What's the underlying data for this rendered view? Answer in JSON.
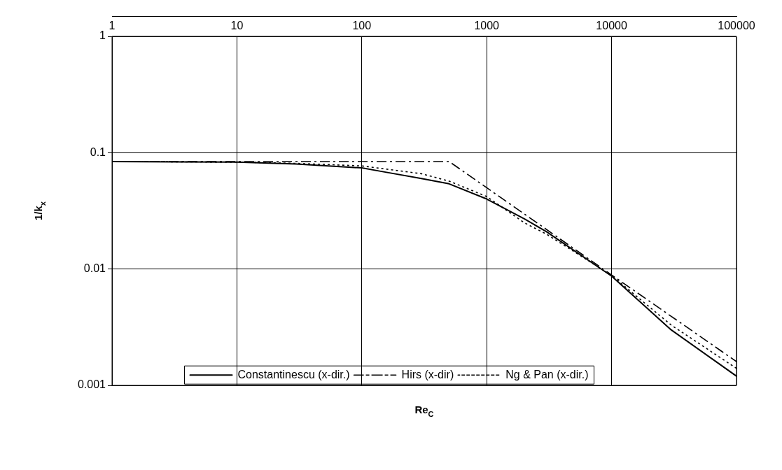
{
  "chart_data": {
    "type": "line",
    "xlabel": "Re$_{C}$",
    "ylabel": "1/k$_{x}$",
    "log": "xy",
    "grid": true,
    "legend": "bottom",
    "marker": "none",
    "xlim": [
      1,
      100000
    ],
    "xticks": [
      1,
      10,
      100,
      1000,
      10000,
      100000
    ],
    "ylim": [
      0.001,
      1
    ],
    "yticks": [
      0.001,
      0.01,
      0.1,
      1
    ],
    "series": [
      {
        "name": "Constantinescu (x-dir.)",
        "color": "#000000",
        "line_style": "solid",
        "x": [
          1,
          10,
          30,
          100,
          144,
          300,
          500,
          1000,
          2000,
          3000,
          10000,
          30000,
          100000
        ],
        "values": [
          0.084,
          0.083,
          0.08,
          0.074,
          0.069,
          0.06,
          0.054,
          0.04,
          0.027,
          0.021,
          0.0087,
          0.003,
          0.0012
        ]
      },
      {
        "name": "Hirs (x-dir)",
        "color": "#000000",
        "line_style": "dashdot",
        "x": [
          1,
          10,
          100,
          500,
          1000,
          10000,
          100000
        ],
        "values": [
          0.084,
          0.084,
          0.084,
          0.084,
          0.05,
          0.0089,
          0.0016
        ]
      },
      {
        "name": "Ng & Pan (x-dir.)",
        "color": "#000000",
        "line_style": "dotted",
        "x": [
          1,
          10,
          30,
          100,
          300,
          500,
          1000,
          2000,
          3000,
          10000,
          30000,
          100000
        ],
        "values": [
          0.084,
          0.083,
          0.081,
          0.077,
          0.066,
          0.057,
          0.042,
          0.025,
          0.02,
          0.0088,
          0.0033,
          0.0014
        ]
      }
    ]
  }
}
